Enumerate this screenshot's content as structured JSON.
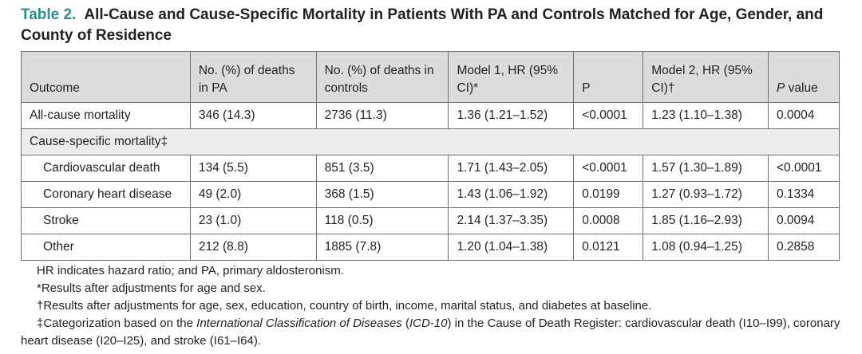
{
  "caption": {
    "number": "Table 2.",
    "title": "All-Cause and Cause-Specific Mortality in Patients With PA and Controls Matched for Age, Gender, and County of Residence"
  },
  "headers": {
    "outcome": "Outcome",
    "deaths_pa": "No. (%) of deaths in PA",
    "deaths_controls": "No. (%) of deaths in controls",
    "model1": "Model 1, HR (95% CI)*",
    "p": "P",
    "model2": "Model 2, HR (95% CI)†",
    "pvalue_italic": "P",
    "pvalue_rest": " value"
  },
  "rows": [
    {
      "outcome": "All-cause mortality",
      "pa": "346 (14.3)",
      "controls": "2736 (11.3)",
      "m1": "1.36 (1.21–1.52)",
      "p": "<0.0001",
      "m2": "1.23 (1.10–1.38)",
      "pv": "0.0004"
    },
    {
      "section": "Cause-specific mortality‡"
    },
    {
      "outcome": "Cardiovascular death",
      "pa": "134 (5.5)",
      "controls": "851 (3.5)",
      "m1": "1.71 (1.43–2.05)",
      "p": "<0.0001",
      "m2": "1.57 (1.30–1.89)",
      "pv": "<0.0001"
    },
    {
      "outcome": "Coronary heart disease",
      "pa": "49 (2.0)",
      "controls": "368 (1.5)",
      "m1": "1.43 (1.06–1.92)",
      "p": "0.0199",
      "m2": "1.27 (0.93–1.72)",
      "pv": "0.1334"
    },
    {
      "outcome": "Stroke",
      "pa": "23 (1.0)",
      "controls": "118 (0.5)",
      "m1": "2.14 (1.37–3.35)",
      "p": "0.0008",
      "m2": "1.85 (1.16–2.93)",
      "pv": "0.0094"
    },
    {
      "outcome": "Other",
      "pa": "212 (8.8)",
      "controls": "1885 (7.8)",
      "m1": "1.20 (1.04–1.38)",
      "p": "0.0121",
      "m2": "1.08 (0.94–1.25)",
      "pv": "0.2858"
    }
  ],
  "notes": {
    "hr": "HR indicates hazard ratio; and PA, primary aldosteronism.",
    "star": "*Results after adjustments for age and sex.",
    "dagger": "†Results after adjustments for age, sex, education, country of birth, income, marital status, and diabetes at baseline.",
    "ddagger_a": "‡Categorization based on the ",
    "ddagger_b": "International Classification of Diseases",
    "ddagger_c": " (",
    "ddagger_d": "ICD-10",
    "ddagger_e": ") in the Cause of Death Register: cardiovascular death (I10–I99), coronary heart disease (I20–I25), and stroke (I61–I64)."
  }
}
